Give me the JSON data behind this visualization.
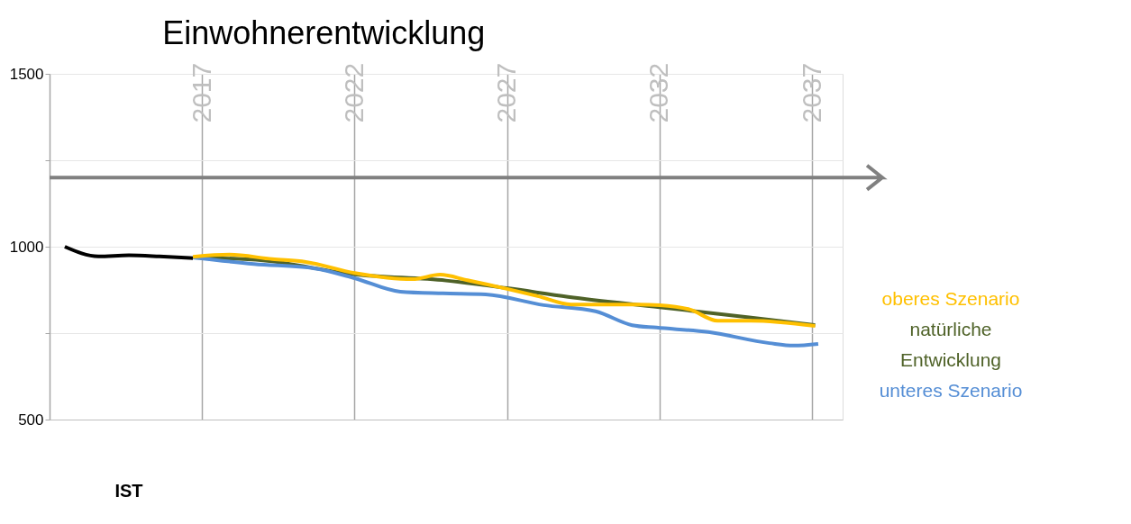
{
  "chart_data": {
    "type": "line",
    "title": "Einwohnerentwicklung",
    "xlim": [
      2012,
      2038
    ],
    "xticks": [
      2017,
      2022,
      2027,
      2032,
      2037
    ],
    "ylim": [
      500,
      1500
    ],
    "yticks": [
      500,
      {
        "value": 750,
        "label": null
      },
      1000,
      {
        "value": 1250,
        "label": null
      },
      1500
    ],
    "grid": true,
    "legend": "right",
    "line_style": "solid",
    "marker": "none",
    "ref_lines": [
      {
        "axis": "y",
        "value": 1200,
        "color": "#808080"
      }
    ],
    "series": [
      {
        "name": "IST",
        "color": "#000000",
        "x": [
          2012.5,
          2013.6,
          2014.6,
          2015.6,
          2016.7
        ],
        "values": [
          1000,
          972,
          975,
          972,
          967
        ]
      },
      {
        "name": "natürliche Entwicklung",
        "color": "#4f6228",
        "x": [
          2016.7,
          2019,
          2022,
          2025,
          2027,
          2029,
          2032,
          2035,
          2037.1
        ],
        "values": [
          969,
          960,
          920,
          902,
          880,
          855,
          825,
          795,
          773
        ]
      },
      {
        "name": "unteres Szenario",
        "color": "#558ed5",
        "x": [
          2016.7,
          2018.7,
          2020.7,
          2022,
          2023.5,
          2024.9,
          2026.3,
          2028.2,
          2029.9,
          2031.1,
          2031.9,
          2033.6,
          2035.6,
          2036.4,
          2037.2
        ],
        "values": [
          969,
          950,
          937,
          909,
          870,
          865,
          862,
          831,
          813,
          773,
          766,
          753,
          721,
          714,
          719
        ]
      },
      {
        "name": "oberes Szenario",
        "color": "#ffc000",
        "x": [
          2016.7,
          2017.9,
          2019.3,
          2020.4,
          2022,
          2023.9,
          2024.8,
          2025.7,
          2027,
          2028,
          2029.1,
          2031.3,
          2032,
          2033,
          2033.9,
          2035,
          2037.1
        ],
        "values": [
          971,
          977,
          964,
          956,
          924,
          906,
          919,
          903,
          878,
          857,
          833,
          833,
          831,
          818,
          786,
          786,
          771
        ]
      }
    ]
  }
}
